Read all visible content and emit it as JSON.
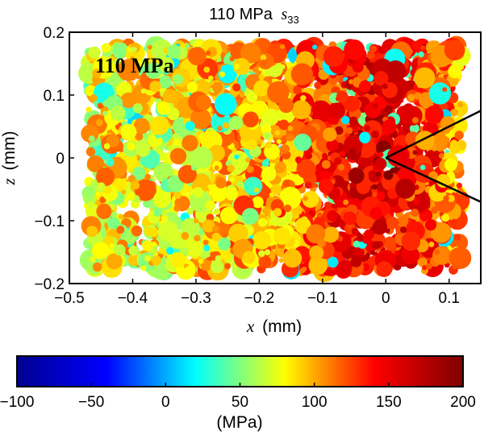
{
  "chart_data": {
    "type": "scatter",
    "title_prefix": "110 MPa",
    "title_symbol": "s",
    "title_subscript": "33",
    "annotation": "110 MPa",
    "xlabel_var": "x",
    "xlabel_unit": "(mm)",
    "ylabel_var": "z",
    "ylabel_unit": "(mm)",
    "xlim": [
      -0.5,
      0.15
    ],
    "ylim": [
      -0.2,
      0.2
    ],
    "x_ticks": [
      -0.5,
      -0.4,
      -0.3,
      -0.2,
      -0.1,
      0,
      0.1
    ],
    "x_tick_labels": [
      "−0.5",
      "−0.4",
      "−0.3",
      "−0.2",
      "−0.1",
      "0",
      "0.1"
    ],
    "y_ticks": [
      0.2,
      0.1,
      0,
      -0.1,
      -0.2
    ],
    "y_tick_labels": [
      "0.2",
      "0.1",
      "0",
      "−0.1",
      "−0.2"
    ],
    "grid": false,
    "points_region": {
      "x_range": [
        -0.47,
        0.12
      ],
      "z_range": [
        -0.18,
        0.18
      ]
    },
    "crack_tip": {
      "x": 0.0,
      "z": 0.0
    },
    "crack_lines": [
      {
        "x1": 0.0,
        "z1": 0.0,
        "x2": 0.15,
        "z2": 0.075
      },
      {
        "x1": 0.0,
        "z1": 0.0,
        "x2": 0.15,
        "z2": -0.07
      }
    ],
    "colorbar": {
      "label": "(MPa)",
      "min": -100,
      "max": 200,
      "ticks": [
        -100,
        -50,
        0,
        50,
        100,
        150,
        200
      ],
      "tick_labels": [
        "−100",
        "−50",
        "0",
        "50",
        "100",
        "150",
        "200"
      ],
      "colormap": [
        "#00008f",
        "#0000ff",
        "#00ffff",
        "#ffff00",
        "#ff0000",
        "#800000"
      ]
    }
  }
}
